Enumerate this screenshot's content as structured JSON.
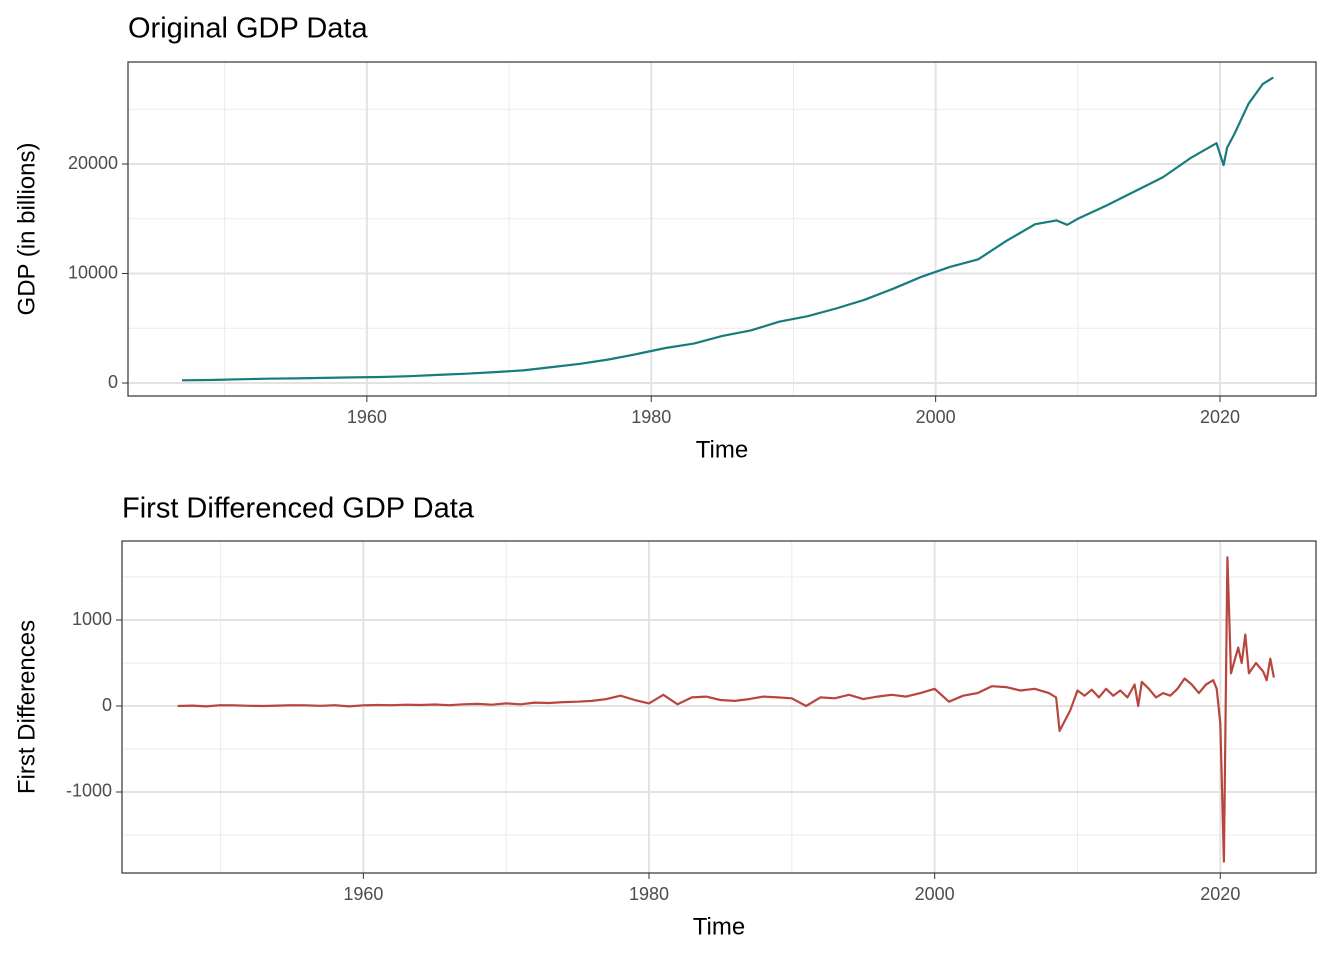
{
  "chart_data": [
    {
      "type": "line",
      "title": "Original GDP Data",
      "x_label": "Time",
      "y_label": "GDP (in billions)",
      "color": "#177c7e",
      "x": [
        1947,
        1949,
        1951,
        1953,
        1955,
        1957,
        1959,
        1961,
        1963,
        1965,
        1967,
        1969,
        1971,
        1973,
        1975,
        1977,
        1979,
        1981,
        1983,
        1985,
        1987,
        1989,
        1991,
        1993,
        1995,
        1997,
        1999,
        2001,
        2003,
        2005,
        2007,
        2008.5,
        2009.25,
        2010,
        2012,
        2014,
        2016,
        2018,
        2019.75,
        2020.25,
        2020.5,
        2021,
        2022,
        2023,
        2023.75
      ],
      "values": [
        243,
        270,
        340,
        390,
        420,
        470,
        510,
        550,
        620,
        740,
        850,
        1000,
        1150,
        1450,
        1750,
        2150,
        2650,
        3200,
        3600,
        4300,
        4800,
        5600,
        6100,
        6800,
        7600,
        8600,
        9700,
        10600,
        11300,
        13000,
        14500,
        14850,
        14450,
        15000,
        16200,
        17500,
        18800,
        20600,
        21900,
        19900,
        21500,
        22700,
        25500,
        27300,
        27900
      ],
      "xlim": [
        1943.2,
        2026.75
      ],
      "xticks": [
        1960,
        1980,
        2000,
        2020
      ],
      "ylim": [
        -1187,
        29315
      ],
      "yticks": [
        0,
        10000,
        20000
      ],
      "grid": true,
      "minor_grid": true
    },
    {
      "type": "line",
      "title": "First Differenced GDP Data",
      "x_label": "Time",
      "y_label": "First Differences",
      "color": "#b8463f",
      "x": [
        1947,
        1948,
        1949,
        1950,
        1951,
        1952,
        1953,
        1954,
        1955,
        1956,
        1957,
        1958,
        1959,
        1960,
        1961,
        1962,
        1963,
        1964,
        1965,
        1966,
        1967,
        1968,
        1969,
        1970,
        1971,
        1972,
        1973,
        1974,
        1975,
        1976,
        1977,
        1978,
        1979,
        1980,
        1981,
        1982,
        1983,
        1984,
        1985,
        1986,
        1987,
        1988,
        1989,
        1990,
        1991,
        1992,
        1993,
        1994,
        1995,
        1996,
        1997,
        1998,
        1999,
        2000,
        2001,
        2002,
        2003,
        2004,
        2005,
        2006,
        2007,
        2008,
        2008.5,
        2008.75,
        2009.5,
        2010,
        2010.5,
        2011,
        2011.5,
        2012,
        2012.5,
        2013,
        2013.5,
        2014,
        2014.25,
        2014.5,
        2015,
        2015.5,
        2016,
        2016.5,
        2017,
        2017.5,
        2018,
        2018.5,
        2019,
        2019.5,
        2019.75,
        2020,
        2020.25,
        2020.5,
        2020.75,
        2021.25,
        2021.5,
        2021.75,
        2022,
        2022.5,
        2023,
        2023.25,
        2023.5,
        2023.75
      ],
      "values": [
        0,
        5,
        -5,
        10,
        8,
        3,
        0,
        5,
        10,
        8,
        2,
        10,
        -5,
        8,
        12,
        10,
        15,
        12,
        18,
        10,
        20,
        25,
        15,
        30,
        20,
        40,
        35,
        45,
        50,
        60,
        80,
        120,
        70,
        30,
        130,
        20,
        100,
        110,
        70,
        60,
        80,
        110,
        100,
        90,
        0,
        100,
        90,
        130,
        80,
        110,
        130,
        110,
        150,
        200,
        50,
        120,
        150,
        230,
        220,
        180,
        200,
        150,
        100,
        -290,
        -50,
        180,
        120,
        190,
        100,
        200,
        120,
        180,
        100,
        250,
        0,
        280,
        200,
        100,
        150,
        120,
        200,
        320,
        250,
        150,
        250,
        300,
        200,
        -200,
        -1810,
        1730,
        380,
        680,
        500,
        830,
        380,
        500,
        400,
        300,
        550,
        330
      ],
      "xlim": [
        1943.1,
        2026.7
      ],
      "xticks": [
        1960,
        1980,
        2000,
        2020
      ],
      "ylim": [
        -1942,
        1919
      ],
      "yticks": [
        -1000,
        0,
        1000
      ],
      "grid": true,
      "minor_grid": true
    }
  ]
}
